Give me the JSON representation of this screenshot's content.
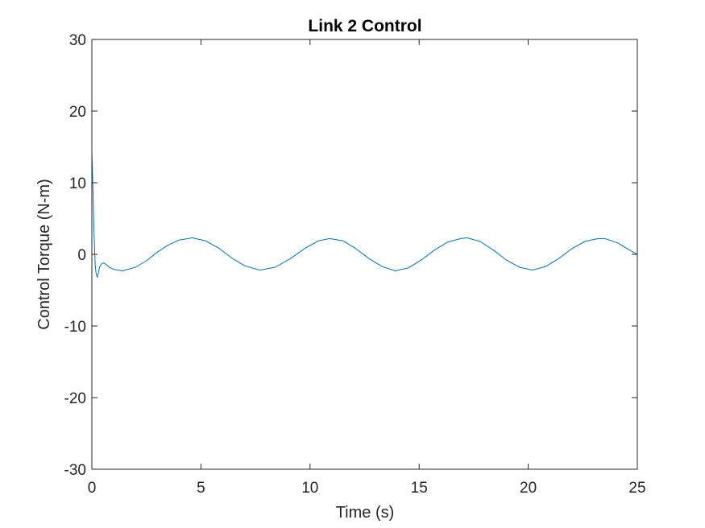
{
  "chart_data": {
    "type": "line",
    "title": "Link 2 Control",
    "xlabel": "Time (s)",
    "ylabel": "Control Torque (N-m)",
    "xlim": [
      0,
      25
    ],
    "ylim": [
      -30,
      30
    ],
    "xticks": [
      0,
      5,
      10,
      15,
      20,
      25
    ],
    "yticks": [
      -30,
      -20,
      -10,
      0,
      10,
      20,
      30
    ],
    "x_tick_labels": [
      "0",
      "5",
      "10",
      "15",
      "20",
      "25"
    ],
    "y_tick_labels": [
      "-30",
      "-20",
      "-10",
      "0",
      "10",
      "20",
      "30"
    ],
    "grid": false,
    "legend": "none",
    "series": [
      {
        "color": "#0072BD",
        "x": [
          0,
          0.05,
          0.1,
          0.15,
          0.2,
          0.25,
          0.3,
          0.35,
          0.45,
          0.55,
          0.65,
          0.8,
          1.0,
          1.4,
          2.0,
          2.5,
          3.0,
          3.5,
          4.0,
          4.6,
          5.2,
          5.8,
          6.4,
          7.0,
          7.7,
          8.4,
          9.1,
          9.8,
          10.4,
          10.9,
          11.5,
          12.1,
          12.7,
          13.3,
          13.9,
          14.5,
          15.1,
          15.7,
          16.3,
          16.9,
          17.2,
          17.8,
          18.4,
          19.0,
          19.6,
          20.2,
          20.8,
          21.4,
          22.0,
          22.6,
          23.2,
          23.5,
          24.1,
          24.7,
          25.0
        ],
        "y": [
          14.5,
          9.0,
          3.0,
          -1.5,
          -2.8,
          -3.2,
          -2.6,
          -1.8,
          -1.3,
          -1.2,
          -1.4,
          -1.8,
          -2.1,
          -2.3,
          -1.8,
          -0.9,
          0.3,
          1.3,
          2.0,
          2.3,
          1.9,
          0.9,
          -0.5,
          -1.6,
          -2.2,
          -1.8,
          -0.6,
          0.9,
          1.9,
          2.2,
          1.9,
          0.8,
          -0.6,
          -1.7,
          -2.3,
          -1.9,
          -0.8,
          0.6,
          1.7,
          2.2,
          2.3,
          1.8,
          0.6,
          -0.8,
          -1.8,
          -2.2,
          -1.7,
          -0.6,
          0.8,
          1.8,
          2.2,
          2.2,
          1.6,
          0.5,
          0.0
        ]
      }
    ]
  }
}
